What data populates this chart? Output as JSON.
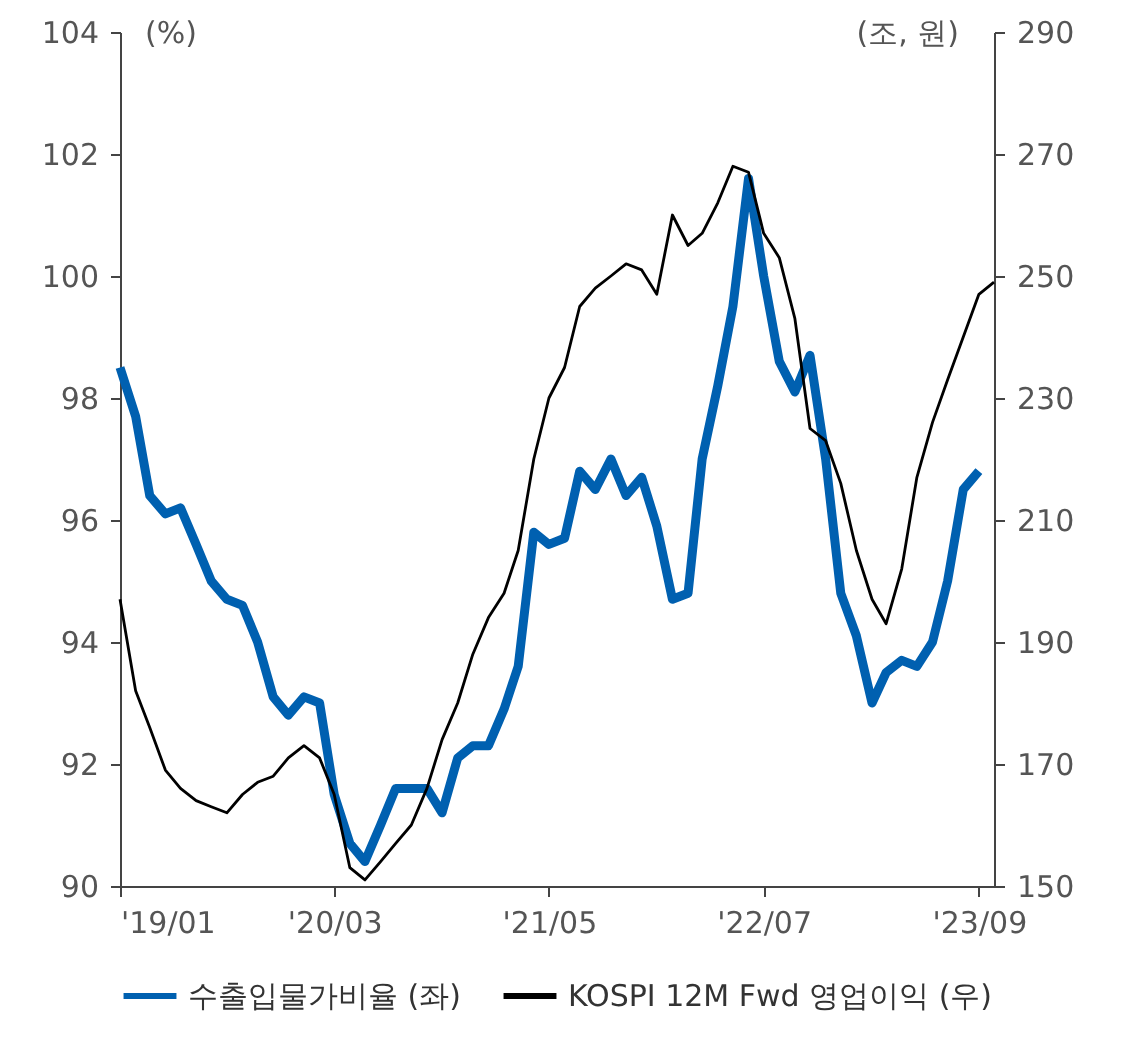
{
  "chart_data": {
    "type": "line",
    "x": [
      "2019-01",
      "2019-02",
      "2019-03",
      "2019-04",
      "2019-05",
      "2019-06",
      "2019-07",
      "2019-08",
      "2019-09",
      "2019-10",
      "2019-11",
      "2019-12",
      "2020-01",
      "2020-02",
      "2020-03",
      "2020-04",
      "2020-05",
      "2020-06",
      "2020-07",
      "2020-08",
      "2020-09",
      "2020-10",
      "2020-11",
      "2020-12",
      "2021-01",
      "2021-02",
      "2021-03",
      "2021-04",
      "2021-05",
      "2021-06",
      "2021-07",
      "2021-08",
      "2021-09",
      "2021-10",
      "2021-11",
      "2021-12",
      "2022-01",
      "2022-02",
      "2022-03",
      "2022-04",
      "2022-05",
      "2022-06",
      "2022-07",
      "2022-08",
      "2022-09",
      "2022-10",
      "2022-11",
      "2022-12",
      "2023-01",
      "2023-02",
      "2023-03",
      "2023-04",
      "2023-05",
      "2023-06",
      "2023-07",
      "2023-08",
      "2023-09",
      "2023-10"
    ],
    "series": [
      {
        "name": "수출입물가비율 (좌)",
        "color": "#0060b0",
        "values": [
          98.5,
          97.7,
          96.4,
          96.1,
          96.2,
          95.6,
          95.0,
          94.7,
          94.6,
          94.0,
          93.1,
          92.8,
          93.1,
          93.0,
          91.5,
          90.7,
          90.4,
          91.0,
          91.6,
          91.6,
          91.6,
          91.2,
          92.1,
          92.3,
          92.3,
          92.9,
          93.6,
          95.8,
          95.6,
          95.7,
          96.8,
          96.5,
          97.0,
          96.4,
          96.7,
          95.9,
          94.7,
          94.8,
          97.0,
          98.2,
          99.5,
          101.6,
          100.0,
          98.6,
          98.1,
          98.7,
          97.0,
          94.8,
          94.1,
          93.0,
          93.5,
          93.7,
          93.6,
          94.0,
          95.0,
          96.5,
          96.8,
          null
        ]
      },
      {
        "name": "KOSPI 12M Fwd 영업이익 (우)",
        "color": "#000000",
        "axis": "y2",
        "values": [
          197,
          182,
          176,
          169,
          166,
          164,
          163,
          162,
          165,
          167,
          168,
          171,
          173,
          171,
          165,
          153,
          151,
          154,
          157,
          160,
          166,
          174,
          180,
          188,
          194,
          198,
          205,
          220,
          230,
          235,
          245,
          248,
          250,
          252,
          251,
          247,
          260,
          255,
          257,
          262,
          268,
          267,
          257,
          253,
          243,
          225,
          223,
          216,
          205,
          197,
          193,
          202,
          217,
          226,
          233,
          240,
          247,
          249
        ]
      }
    ],
    "xlim": [
      "2019-01",
      "2023-10"
    ],
    "xticks": [
      {
        "value": "2019-01",
        "label": "'19/01"
      },
      {
        "value": "2020-03",
        "label": "'20/03"
      },
      {
        "value": "2021-05",
        "label": "'21/05"
      },
      {
        "value": "2022-07",
        "label": "'22/07"
      },
      {
        "value": "2023-09",
        "label": "'23/09"
      }
    ],
    "ylim": [
      90,
      104
    ],
    "yticks": [
      90,
      92,
      94,
      96,
      98,
      100,
      102,
      104
    ],
    "y2lim": [
      150,
      290
    ],
    "y2ticks": [
      150,
      170,
      190,
      210,
      230,
      250,
      270,
      290
    ],
    "ylabel": "(%)",
    "y2label": "(조, 원)",
    "legend": "bottom",
    "grid": false,
    "marker": "none",
    "line_style": "solid"
  }
}
